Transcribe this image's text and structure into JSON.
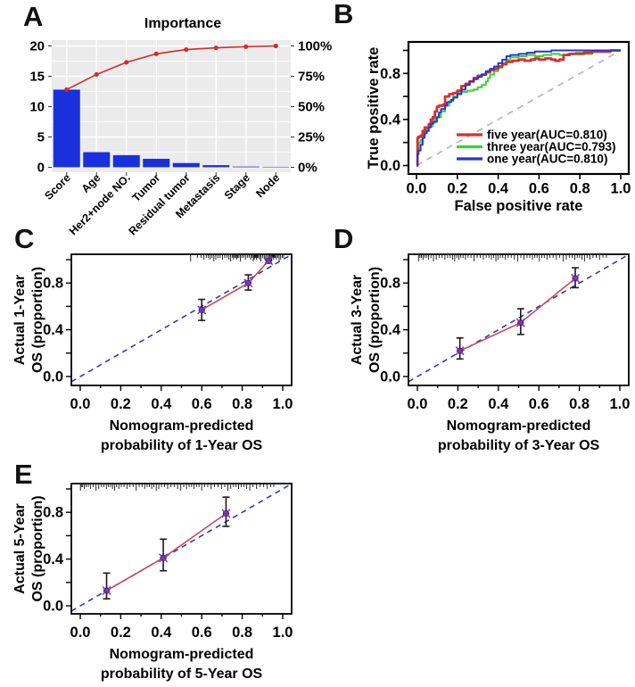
{
  "panel_letters": {
    "a": "A",
    "b": "B",
    "c": "C",
    "d": "D",
    "e": "E"
  },
  "colors": {
    "bar": "#1a30dd",
    "pareto_line": "#d62b2b",
    "panel_bg": "#ebebeb",
    "grid": "#ffffff",
    "roc_diagonal": "#bbbbbb",
    "calib_ideal": "#3434bb",
    "calib_line": "#cd4a53",
    "calib_point": "#8f2160",
    "calib_cross": "#6a3fd0",
    "error_bar": "#1a1a1a",
    "axis": "#000000"
  },
  "chart_data": [
    {
      "panel": "A",
      "type": "bar",
      "title": "Importance",
      "categories": [
        "Score",
        "Age",
        "Her2+node NO.",
        "Tumor",
        "Residual tumor",
        "Metastasis",
        "Stage",
        "Node"
      ],
      "values": [
        12.8,
        2.5,
        2.0,
        1.4,
        0.7,
        0.35,
        0.12,
        0.08
      ],
      "cumulative_pct": [
        64,
        76.5,
        86.5,
        93.5,
        97,
        98.5,
        99.4,
        100
      ],
      "y_left": {
        "tick_labels": [
          "0",
          "5",
          "10",
          "15",
          "20"
        ],
        "ticks": [
          0,
          5,
          10,
          15,
          20
        ],
        "lim": [
          0,
          20
        ]
      },
      "y_right": {
        "tick_labels": [
          "0%",
          "25%",
          "50%",
          "75%",
          "100%"
        ],
        "ticks": [
          0,
          25,
          50,
          75,
          100
        ],
        "lim": [
          0,
          100
        ]
      },
      "grid": "on"
    },
    {
      "panel": "B",
      "type": "line",
      "xlabel": "False positive rate",
      "ylabel": "True positive rate",
      "xlim": [
        0,
        1
      ],
      "ylim": [
        0,
        1
      ],
      "x_ticks": [
        0,
        0.2,
        0.4,
        0.6,
        0.8,
        1.0
      ],
      "x_tick_labels": [
        "0.0",
        "0.2",
        "0.4",
        "0.6",
        "0.8",
        "1.0"
      ],
      "y_ticks": [
        0,
        0.2,
        0.4,
        0.6,
        0.8,
        1.0
      ],
      "y_tick_labels": {
        "0": "0.0",
        "0.4": "0.4",
        "0.8": "0.8"
      },
      "reference_line": "dashed diagonal",
      "legend_position": "bottom-right",
      "series": [
        {
          "name": "five year(AUC=0.810)",
          "auc": 0.81,
          "color": "#d92f2f",
          "width": 2.8,
          "points": [
            [
              0,
              0
            ],
            [
              0.005,
              0.24
            ],
            [
              0.01,
              0.25
            ],
            [
              0.02,
              0.26
            ],
            [
              0.03,
              0.3
            ],
            [
              0.04,
              0.33
            ],
            [
              0.05,
              0.33
            ],
            [
              0.06,
              0.36
            ],
            [
              0.07,
              0.4
            ],
            [
              0.08,
              0.42
            ],
            [
              0.09,
              0.47
            ],
            [
              0.1,
              0.51
            ],
            [
              0.11,
              0.52
            ],
            [
              0.13,
              0.53
            ],
            [
              0.14,
              0.6
            ],
            [
              0.16,
              0.62
            ],
            [
              0.18,
              0.63
            ],
            [
              0.2,
              0.65
            ],
            [
              0.22,
              0.69
            ],
            [
              0.24,
              0.71
            ],
            [
              0.26,
              0.73
            ],
            [
              0.28,
              0.76
            ],
            [
              0.3,
              0.78
            ],
            [
              0.32,
              0.79
            ],
            [
              0.34,
              0.81
            ],
            [
              0.36,
              0.83
            ],
            [
              0.38,
              0.84
            ],
            [
              0.4,
              0.86
            ],
            [
              0.42,
              0.88
            ],
            [
              0.44,
              0.9
            ],
            [
              0.47,
              0.91
            ],
            [
              0.5,
              0.92
            ],
            [
              0.53,
              0.91
            ],
            [
              0.56,
              0.92
            ],
            [
              0.58,
              0.93
            ],
            [
              0.6,
              0.92
            ],
            [
              0.63,
              0.93
            ],
            [
              0.66,
              0.92
            ],
            [
              0.68,
              0.91
            ],
            [
              0.7,
              0.92
            ],
            [
              0.72,
              0.96
            ],
            [
              0.75,
              0.97
            ],
            [
              0.78,
              0.97
            ],
            [
              0.82,
              0.98
            ],
            [
              0.86,
              0.99
            ],
            [
              0.9,
              0.99
            ],
            [
              0.95,
              1
            ],
            [
              1,
              1
            ]
          ]
        },
        {
          "name": "three year(AUC=0.793)",
          "auc": 0.793,
          "color": "#35d435",
          "width": 2.0,
          "points": [
            [
              0,
              0
            ],
            [
              0.005,
              0.12
            ],
            [
              0.01,
              0.2
            ],
            [
              0.02,
              0.22
            ],
            [
              0.03,
              0.26
            ],
            [
              0.04,
              0.3
            ],
            [
              0.05,
              0.32
            ],
            [
              0.06,
              0.34
            ],
            [
              0.08,
              0.37
            ],
            [
              0.09,
              0.4
            ],
            [
              0.1,
              0.42
            ],
            [
              0.12,
              0.47
            ],
            [
              0.14,
              0.52
            ],
            [
              0.16,
              0.56
            ],
            [
              0.18,
              0.6
            ],
            [
              0.2,
              0.63
            ],
            [
              0.22,
              0.64
            ],
            [
              0.25,
              0.65
            ],
            [
              0.28,
              0.66
            ],
            [
              0.3,
              0.68
            ],
            [
              0.32,
              0.7
            ],
            [
              0.34,
              0.73
            ],
            [
              0.35,
              0.76
            ],
            [
              0.36,
              0.79
            ],
            [
              0.38,
              0.82
            ],
            [
              0.4,
              0.85
            ],
            [
              0.42,
              0.89
            ],
            [
              0.44,
              0.92
            ],
            [
              0.46,
              0.94
            ],
            [
              0.5,
              0.95
            ],
            [
              0.54,
              0.96
            ],
            [
              0.58,
              0.95
            ],
            [
              0.62,
              0.96
            ],
            [
              0.66,
              0.97
            ],
            [
              0.7,
              0.96
            ],
            [
              0.74,
              0.97
            ],
            [
              0.78,
              0.98
            ],
            [
              0.82,
              0.97
            ],
            [
              0.86,
              0.99
            ],
            [
              0.9,
              1
            ],
            [
              1,
              1
            ]
          ]
        },
        {
          "name": "one year(AUC=0.810)",
          "auc": 0.81,
          "color": "#2836cc",
          "width": 2.0,
          "points": [
            [
              0,
              0
            ],
            [
              0.005,
              0.1
            ],
            [
              0.01,
              0.13
            ],
            [
              0.02,
              0.18
            ],
            [
              0.03,
              0.24
            ],
            [
              0.04,
              0.28
            ],
            [
              0.05,
              0.3
            ],
            [
              0.06,
              0.33
            ],
            [
              0.07,
              0.36
            ],
            [
              0.08,
              0.38
            ],
            [
              0.1,
              0.42
            ],
            [
              0.11,
              0.46
            ],
            [
              0.12,
              0.49
            ],
            [
              0.14,
              0.52
            ],
            [
              0.15,
              0.55
            ],
            [
              0.17,
              0.57
            ],
            [
              0.18,
              0.59
            ],
            [
              0.2,
              0.62
            ],
            [
              0.22,
              0.66
            ],
            [
              0.24,
              0.7
            ],
            [
              0.26,
              0.73
            ],
            [
              0.28,
              0.75
            ],
            [
              0.3,
              0.77
            ],
            [
              0.32,
              0.79
            ],
            [
              0.34,
              0.82
            ],
            [
              0.36,
              0.84
            ],
            [
              0.38,
              0.86
            ],
            [
              0.4,
              0.89
            ],
            [
              0.42,
              0.92
            ],
            [
              0.44,
              0.95
            ],
            [
              0.46,
              0.96
            ],
            [
              0.5,
              0.97
            ],
            [
              0.54,
              0.98
            ],
            [
              0.58,
              0.99
            ],
            [
              0.62,
              0.99
            ],
            [
              0.66,
              1
            ],
            [
              0.75,
              1
            ],
            [
              1,
              1
            ]
          ]
        }
      ]
    },
    {
      "panel": "C",
      "type": "scatter",
      "xlabel_lines": [
        "Nomogram-predicted",
        "probability of 1-Year OS"
      ],
      "ylabel_lines": [
        "Actual 1-Year",
        "OS (proportion)"
      ],
      "xlim": [
        0,
        1
      ],
      "ylim": [
        0,
        1
      ],
      "x_tick_labels": [
        "0.0",
        "0.2",
        "0.4",
        "0.6",
        "0.8",
        "1.0"
      ],
      "y_tick_labels": [
        "0.0",
        "0.4",
        "0.8"
      ],
      "points": [
        {
          "x": 0.6,
          "y": 0.57,
          "lo": 0.48,
          "hi": 0.66
        },
        {
          "x": 0.83,
          "y": 0.8,
          "lo": 0.74,
          "hi": 0.87
        },
        {
          "x": 0.93,
          "y": 0.99,
          "lo": 0.97,
          "hi": 1.0
        }
      ],
      "rug": {
        "min": 0.54,
        "max": 1.0,
        "count": 60,
        "exp": 0.65,
        "seed": 1
      }
    },
    {
      "panel": "D",
      "type": "scatter",
      "xlabel_lines": [
        "Nomogram-predicted",
        "probability of 3-Year OS"
      ],
      "ylabel_lines": [
        "Actual 3-Year",
        "OS (proportion)"
      ],
      "xlim": [
        0,
        1
      ],
      "ylim": [
        0,
        1
      ],
      "x_tick_labels": [
        "0.0",
        "0.2",
        "0.4",
        "0.6",
        "0.8",
        "1.0"
      ],
      "y_tick_labels": [
        "0.0",
        "0.4",
        "0.8"
      ],
      "points": [
        {
          "x": 0.21,
          "y": 0.22,
          "lo": 0.15,
          "hi": 0.33
        },
        {
          "x": 0.51,
          "y": 0.46,
          "lo": 0.36,
          "hi": 0.58
        },
        {
          "x": 0.78,
          "y": 0.84,
          "lo": 0.76,
          "hi": 0.93
        }
      ],
      "rug": {
        "min": 0.0,
        "max": 0.93,
        "count": 72,
        "exp": 1.1,
        "seed": 2
      }
    },
    {
      "panel": "E",
      "type": "scatter",
      "xlabel_lines": [
        "Nomogram-predicted",
        "probability of 5-Year OS"
      ],
      "ylabel_lines": [
        "Actual 5-Year",
        "OS (proportion)"
      ],
      "xlim": [
        0,
        1
      ],
      "ylim": [
        0,
        1
      ],
      "x_tick_labels": [
        "0.0",
        "0.2",
        "0.4",
        "0.6",
        "0.8",
        "1.0"
      ],
      "y_tick_labels": [
        "0.0",
        "0.4",
        "0.8"
      ],
      "points": [
        {
          "x": 0.13,
          "y": 0.13,
          "lo": 0.06,
          "hi": 0.28
        },
        {
          "x": 0.41,
          "y": 0.41,
          "lo": 0.3,
          "hi": 0.57
        },
        {
          "x": 0.72,
          "y": 0.79,
          "lo": 0.68,
          "hi": 0.93
        }
      ],
      "rug": {
        "min": 0.0,
        "max": 0.95,
        "count": 72,
        "exp": 1.15,
        "seed": 3
      }
    }
  ]
}
